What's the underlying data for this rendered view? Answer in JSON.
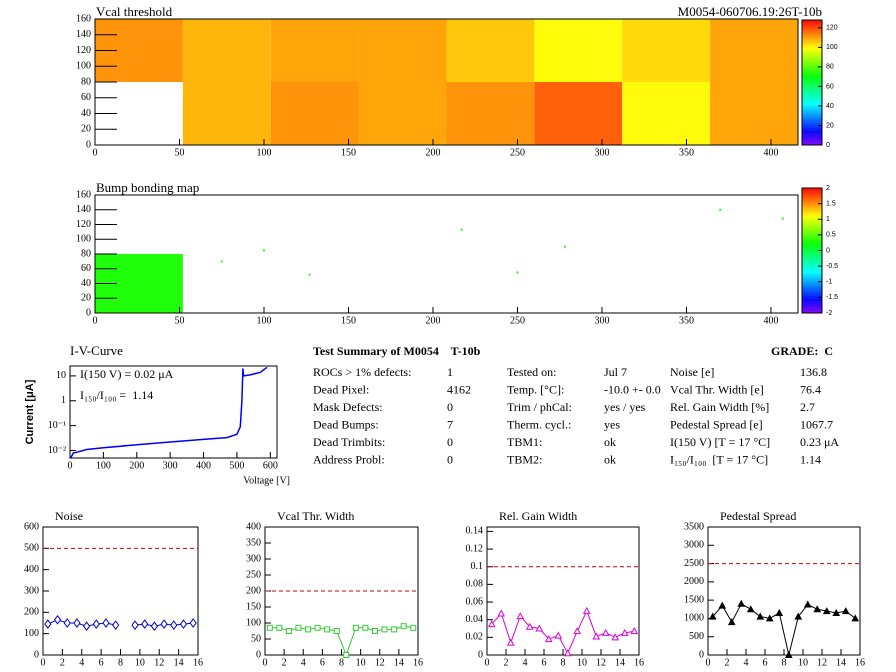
{
  "chart_data": [
    {
      "type": "heatmap",
      "title": "Vcal threshold",
      "subtitle": "M0054-060706.19:26T-10b",
      "xlim": [
        0,
        416
      ],
      "ylim": [
        0,
        160
      ],
      "xticks": [
        0,
        50,
        100,
        150,
        200,
        250,
        300,
        350,
        400
      ],
      "yticks": [
        0,
        20,
        40,
        60,
        80,
        100,
        120,
        140,
        160
      ],
      "values": [
        [
          null,
          108,
          112,
          110,
          112,
          118,
          100,
          110
        ],
        [
          112,
          108,
          110,
          110,
          106,
          100,
          104,
          110
        ]
      ],
      "zlim": [
        0,
        128
      ],
      "zticks": [
        0,
        20,
        40,
        60,
        80,
        100,
        120
      ]
    },
    {
      "type": "heatmap",
      "title": "Bump bonding map",
      "xlim": [
        0,
        416
      ],
      "ylim": [
        0,
        160
      ],
      "xticks": [
        0,
        50,
        100,
        150,
        200,
        250,
        300,
        350,
        400
      ],
      "yticks": [
        0,
        20,
        40,
        60,
        80,
        100,
        120,
        140,
        160
      ],
      "values": [
        [
          0.3,
          null,
          null,
          null,
          null,
          null,
          null,
          null
        ],
        [
          null,
          null,
          null,
          null,
          null,
          null,
          null,
          null
        ]
      ],
      "points": {
        "x": [
          75,
          100,
          127,
          217,
          250,
          278,
          370,
          407
        ],
        "y": [
          70,
          85,
          52,
          113,
          55,
          90,
          140,
          128
        ],
        "z": [
          0.3,
          0.3,
          0.3,
          0.3,
          0.3,
          0.3,
          0.3,
          0.3
        ]
      },
      "zlim": [
        -2,
        2
      ],
      "zticks": [
        -2,
        -1.5,
        -1,
        -0.5,
        0,
        0.5,
        1,
        1.5,
        2
      ]
    },
    {
      "type": "line",
      "title": "I-V-Curve",
      "x_label": "Voltage [V]",
      "y_label": "Current [μA]",
      "log_y": true,
      "color": "#0000ff",
      "annotations": [
        "I(150 V) = 0.02 μA",
        "I₁₅₀/I₁₀₀ =  1.14"
      ],
      "x": [
        2,
        10,
        20,
        50,
        100,
        200,
        300,
        400,
        470,
        500,
        510,
        515,
        518,
        520,
        540,
        570,
        590
      ],
      "values": [
        0.005,
        0.008,
        0.0085,
        0.011,
        0.013,
        0.017,
        0.022,
        0.028,
        0.033,
        0.045,
        0.09,
        1,
        20,
        10,
        11,
        14,
        22
      ],
      "xlim": [
        0,
        620
      ],
      "ylim": [
        0.005,
        25
      ],
      "xticks": [
        0,
        100,
        200,
        300,
        400,
        500,
        600
      ],
      "yticks": [
        {
          "value": 0.01,
          "label": "10⁻²"
        },
        {
          "value": 0.1,
          "label": "10⁻¹"
        },
        1,
        10
      ]
    },
    {
      "type": "line",
      "title": "Noise",
      "color": "#0000cc",
      "marker": "diamond",
      "threshold": 500,
      "x": [
        0.5,
        1.5,
        2.5,
        3.5,
        4.5,
        5.5,
        6.5,
        7.5,
        8.5,
        9.5,
        10.5,
        11.5,
        12.5,
        13.5,
        14.5,
        15.5
      ],
      "values": [
        145,
        165,
        150,
        150,
        135,
        145,
        150,
        140,
        null,
        140,
        145,
        135,
        145,
        140,
        145,
        150
      ],
      "xlim": [
        0,
        16
      ],
      "ylim": [
        0,
        600
      ],
      "xticks": [
        0,
        2,
        4,
        6,
        8,
        10,
        12,
        14,
        16
      ],
      "yticks": [
        0,
        100,
        200,
        300,
        400,
        500,
        600
      ]
    },
    {
      "type": "line",
      "title": "Vcal Thr. Width",
      "color": "#33cc33",
      "marker": "square",
      "threshold": 200,
      "x": [
        0.5,
        1.5,
        2.5,
        3.5,
        4.5,
        5.5,
        6.5,
        7.5,
        8.5,
        9.5,
        10.5,
        11.5,
        12.5,
        13.5,
        14.5,
        15.5
      ],
      "values": [
        85,
        85,
        75,
        85,
        80,
        85,
        80,
        75,
        0,
        85,
        85,
        75,
        80,
        80,
        90,
        85
      ],
      "xlim": [
        0,
        16
      ],
      "ylim": [
        0,
        400
      ],
      "xticks": [
        0,
        2,
        4,
        6,
        8,
        10,
        12,
        14,
        16
      ],
      "yticks": [
        0,
        50,
        100,
        150,
        200,
        250,
        300,
        350,
        400
      ]
    },
    {
      "type": "line",
      "title": "Rel. Gain Width",
      "color": "#dd00dd",
      "marker": "triangle",
      "threshold": 0.1,
      "x": [
        0.5,
        1.5,
        2.5,
        3.5,
        4.5,
        5.5,
        6.5,
        7.5,
        8.5,
        9.5,
        10.5,
        11.5,
        12.5,
        13.5,
        14.5,
        15.5
      ],
      "values": [
        0.035,
        0.047,
        0.014,
        0.044,
        0.032,
        0.03,
        0.018,
        0.022,
        0.002,
        0.027,
        0.05,
        0.021,
        0.025,
        0.02,
        0.025,
        0.027
      ],
      "xlim": [
        0,
        16
      ],
      "ylim": [
        0,
        0.145
      ],
      "xticks": [
        0,
        2,
        4,
        6,
        8,
        10,
        12,
        14,
        16
      ],
      "yticks": [
        0,
        0.02,
        0.04,
        0.06,
        0.08,
        0.1,
        0.12,
        0.14
      ]
    },
    {
      "type": "line",
      "title": "Pedestal Spread",
      "color": "#000000",
      "marker": "filled-triangle",
      "threshold": 2500,
      "x": [
        0.5,
        1.5,
        2.5,
        3.5,
        4.5,
        5.5,
        6.5,
        7.5,
        8.5,
        9.5,
        10.5,
        11.5,
        12.5,
        13.5,
        14.5,
        15.5
      ],
      "values": [
        1050,
        1350,
        900,
        1400,
        1250,
        1050,
        1000,
        1150,
        0,
        1050,
        1380,
        1250,
        1200,
        1150,
        1200,
        1000
      ],
      "xlim": [
        0,
        16
      ],
      "ylim": [
        0,
        3500
      ],
      "xticks": [
        0,
        2,
        4,
        6,
        8,
        10,
        12,
        14,
        16
      ],
      "yticks": [
        0,
        500,
        1000,
        1500,
        2000,
        2500,
        3000,
        3500
      ]
    }
  ],
  "summary": {
    "title": "Test Summary of M0054    T-10b",
    "grade": "GRADE:  C",
    "columns": [
      [
        {
          "label": "ROCs > 1% defects:",
          "value": "1"
        },
        {
          "label": "Dead Pixel:",
          "value": "4162"
        },
        {
          "label": "Mask Defects:",
          "value": "0"
        },
        {
          "label": "Dead Bumps:",
          "value": "7"
        },
        {
          "label": "Dead Trimbits:",
          "value": "0"
        },
        {
          "label": "Address Probl:",
          "value": "0"
        }
      ],
      [
        {
          "label": "Tested on:",
          "value": "Jul 7"
        },
        {
          "label": "Temp. [°C]:",
          "value": "-10.0 +- 0.0"
        },
        {
          "label": "Trim / phCal:",
          "value": "yes / yes"
        },
        {
          "label": "Therm. cycl.:",
          "value": "yes"
        },
        {
          "label": "TBM1:",
          "value": "ok"
        },
        {
          "label": "TBM2:",
          "value": "ok"
        }
      ],
      [
        {
          "label": "Noise [e]",
          "value": "136.8"
        },
        {
          "label": "Vcal Thr. Width [e]",
          "value": "76.4"
        },
        {
          "label": "Rel. Gain Width [%]",
          "value": "2.7"
        },
        {
          "label": "Pedestal Spread [e]",
          "value": "1067.7"
        },
        {
          "label": "I(150 V) [T = 17 °C]",
          "value": "0.23 μA"
        },
        {
          "label": "I₁₅₀/I₁₀₀  [T = 17 °C]",
          "value": "1.14"
        }
      ]
    ]
  }
}
